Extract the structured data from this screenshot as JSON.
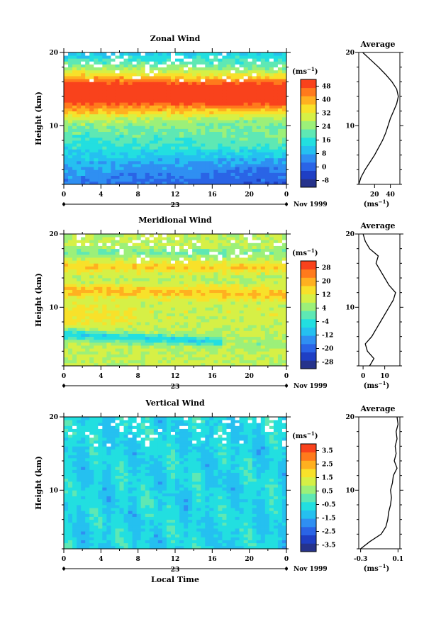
{
  "figure": {
    "x_axis_label": "Local Time",
    "date_label": "Nov 1999",
    "day_label": "23",
    "unit_label": "(ms",
    "unit_exp": "−1",
    "avg_title": "Average"
  },
  "palette": [
    "#26338c",
    "#1f3fc4",
    "#2a64e6",
    "#2f8ff2",
    "#25c0f0",
    "#22dfe0",
    "#5ee8b4",
    "#9cf079",
    "#d6f046",
    "#f8e12a",
    "#ffb020",
    "#ff7a1c",
    "#f9421c"
  ],
  "chart_data": [
    {
      "type": "heatmap",
      "title": "Zonal Wind",
      "ylabel": "Height (km)",
      "x": [
        0,
        4,
        8,
        12,
        16,
        20,
        0
      ],
      "xlim": [
        0,
        24
      ],
      "ylim": [
        2,
        20
      ],
      "y_ticks": [
        10,
        20
      ],
      "z_unit": "ms-1",
      "colorbar_ticks": [
        -8,
        0,
        8,
        16,
        24,
        32,
        40,
        48
      ],
      "colorbar_range": [
        -12,
        52
      ],
      "profile": {
        "title": "Average",
        "x_ticks": [
          20,
          40
        ],
        "xlim": [
          0,
          52
        ],
        "points": [
          [
            0,
            2
          ],
          [
            3,
            3
          ],
          [
            8,
            4
          ],
          [
            14,
            5
          ],
          [
            20,
            6
          ],
          [
            25,
            7
          ],
          [
            30,
            8
          ],
          [
            34,
            9
          ],
          [
            37,
            10
          ],
          [
            40,
            11
          ],
          [
            44,
            12
          ],
          [
            48,
            13
          ],
          [
            50,
            14
          ],
          [
            48,
            15
          ],
          [
            42,
            16
          ],
          [
            34,
            17
          ],
          [
            25,
            18
          ],
          [
            15,
            19
          ],
          [
            5,
            20
          ]
        ]
      }
    },
    {
      "type": "heatmap",
      "title": "Meridional Wind",
      "ylabel": "Height (km)",
      "x": [
        0,
        4,
        8,
        12,
        16,
        20,
        0
      ],
      "xlim": [
        0,
        24
      ],
      "ylim": [
        2,
        20
      ],
      "y_ticks": [
        10,
        20
      ],
      "z_unit": "ms-1",
      "colorbar_ticks": [
        -28,
        -20,
        -12,
        -4,
        4,
        12,
        20,
        28
      ],
      "colorbar_range": [
        -32,
        32
      ],
      "profile": {
        "title": "Average",
        "x_ticks": [
          0,
          10
        ],
        "xlim": [
          -2,
          17
        ],
        "points": [
          [
            3,
            2
          ],
          [
            5,
            3
          ],
          [
            2,
            4
          ],
          [
            1,
            5
          ],
          [
            4,
            6
          ],
          [
            6,
            7
          ],
          [
            8,
            8
          ],
          [
            10,
            9
          ],
          [
            12,
            10
          ],
          [
            14,
            11
          ],
          [
            15,
            12
          ],
          [
            12,
            13
          ],
          [
            10,
            14
          ],
          [
            8,
            15
          ],
          [
            6,
            16
          ],
          [
            7,
            17
          ],
          [
            3,
            18
          ],
          [
            1,
            19
          ],
          [
            0,
            20
          ]
        ]
      }
    },
    {
      "type": "heatmap",
      "title": "Vertical Wind",
      "ylabel": "Height (km)",
      "x": [
        0,
        4,
        8,
        12,
        16,
        20,
        0
      ],
      "xlim": [
        0,
        24
      ],
      "ylim": [
        2,
        20
      ],
      "y_ticks": [
        10,
        20
      ],
      "z_unit": "ms-1",
      "colorbar_ticks": [
        -3.5,
        -2.5,
        -1.5,
        -0.5,
        0.5,
        1.5,
        2.5,
        3.5
      ],
      "colorbar_range": [
        -4,
        4
      ],
      "profile": {
        "title": "Average",
        "x_ticks": [
          -0.3,
          0.1
        ],
        "xlim": [
          -0.32,
          0.12
        ],
        "points": [
          [
            -0.3,
            2
          ],
          [
            -0.2,
            3
          ],
          [
            -0.08,
            4
          ],
          [
            -0.03,
            5
          ],
          [
            -0.01,
            6
          ],
          [
            0,
            7
          ],
          [
            0.02,
            8
          ],
          [
            0.03,
            9
          ],
          [
            0.02,
            10
          ],
          [
            0.04,
            11
          ],
          [
            0.05,
            12
          ],
          [
            0.09,
            13
          ],
          [
            0.06,
            14
          ],
          [
            0.08,
            15
          ],
          [
            0.07,
            16
          ],
          [
            0.09,
            17
          ],
          [
            0.08,
            18
          ],
          [
            0.1,
            19
          ],
          [
            0.09,
            20
          ]
        ]
      }
    }
  ]
}
